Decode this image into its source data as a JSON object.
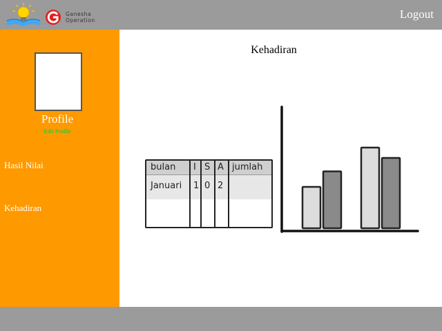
{
  "header": {
    "logo_line1": "Ganesha",
    "logo_line2": "Operation",
    "logout_label": "Logout"
  },
  "sidebar": {
    "profile_label": "Profile",
    "edit_profile_label": "Edit Profile",
    "items": [
      {
        "label": "Hasil Nilai"
      },
      {
        "label": "Kehadiran"
      }
    ]
  },
  "main": {
    "title": "Kehadiran",
    "table": {
      "headers": [
        "bulan",
        "I",
        "S",
        "A",
        "jumlah"
      ],
      "rows": [
        [
          "Januari",
          "1",
          "0",
          "2",
          ""
        ]
      ]
    }
  },
  "colors": {
    "topbar": "#9b9b9b",
    "sidebar": "#ff9900",
    "edit_profile": "#33cc33",
    "bar_light": "#dcdcdc",
    "bar_dark": "#8a8a8a"
  },
  "chart_data": {
    "type": "bar",
    "categories": [
      "",
      ""
    ],
    "series": [
      {
        "values": [
          40,
          78
        ]
      },
      {
        "values": [
          55,
          68
        ]
      }
    ],
    "ylim": [
      0,
      100
    ],
    "grid": false
  }
}
